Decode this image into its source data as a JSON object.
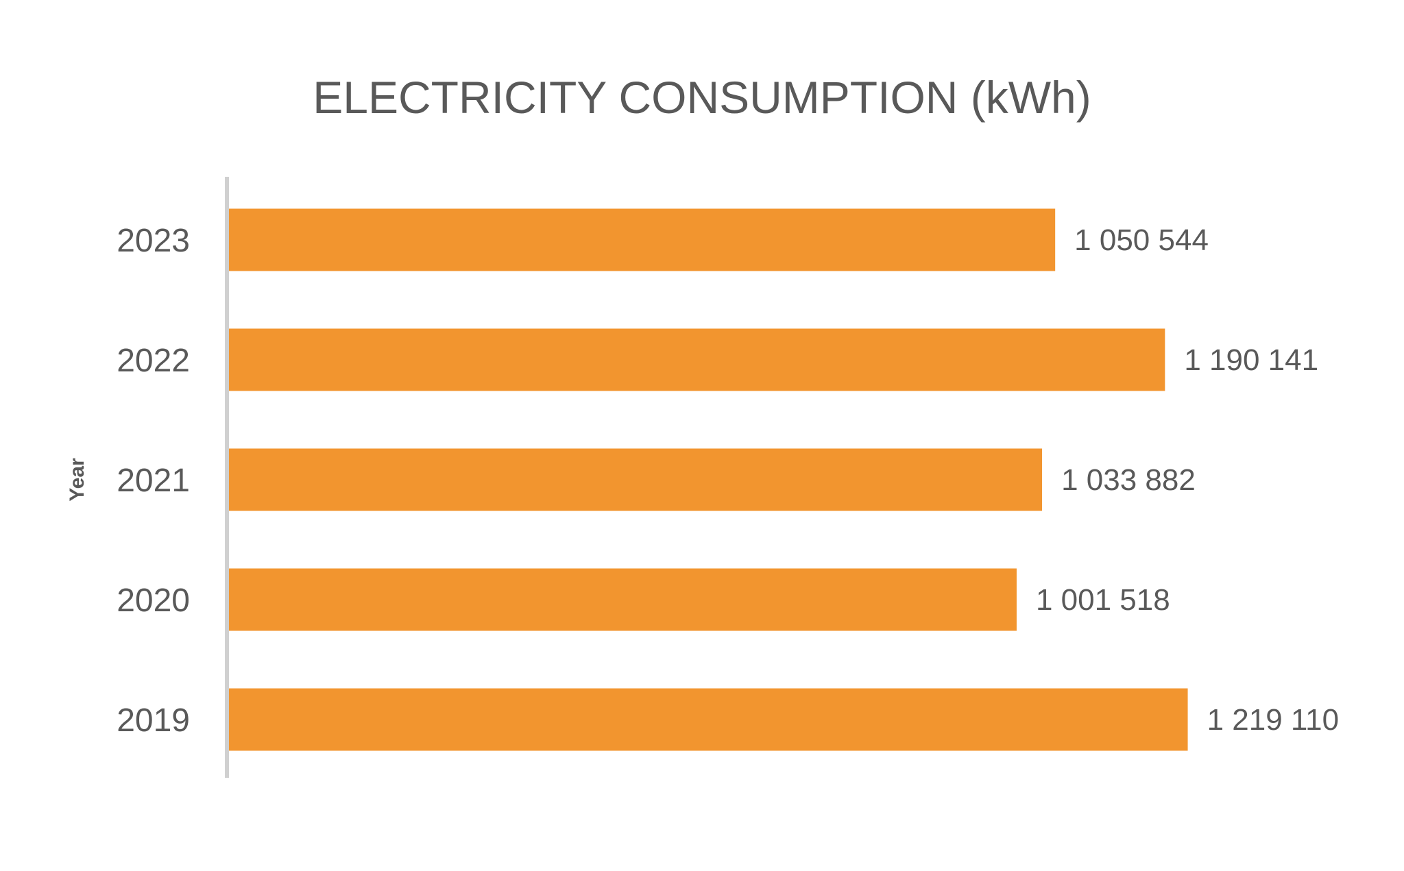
{
  "chart_data": {
    "type": "bar",
    "orientation": "horizontal",
    "title": "ELECTRICITY CONSUMPTION (kWh)",
    "xlabel": "",
    "ylabel": "Year",
    "categories": [
      "2023",
      "2022",
      "2021",
      "2020",
      "2019"
    ],
    "values": [
      1050544,
      1190141,
      1033882,
      1001518,
      1219110
    ],
    "value_labels": [
      "1 050 544",
      "1 190 141",
      "1 033 882",
      "1 001 518",
      "1 219 110"
    ],
    "xlim": [
      0,
      1250000
    ],
    "grid": false,
    "legend": "none",
    "colors": {
      "bar": "#F2952F",
      "axis_line": "#D0D0D0",
      "text": "#595959"
    }
  }
}
